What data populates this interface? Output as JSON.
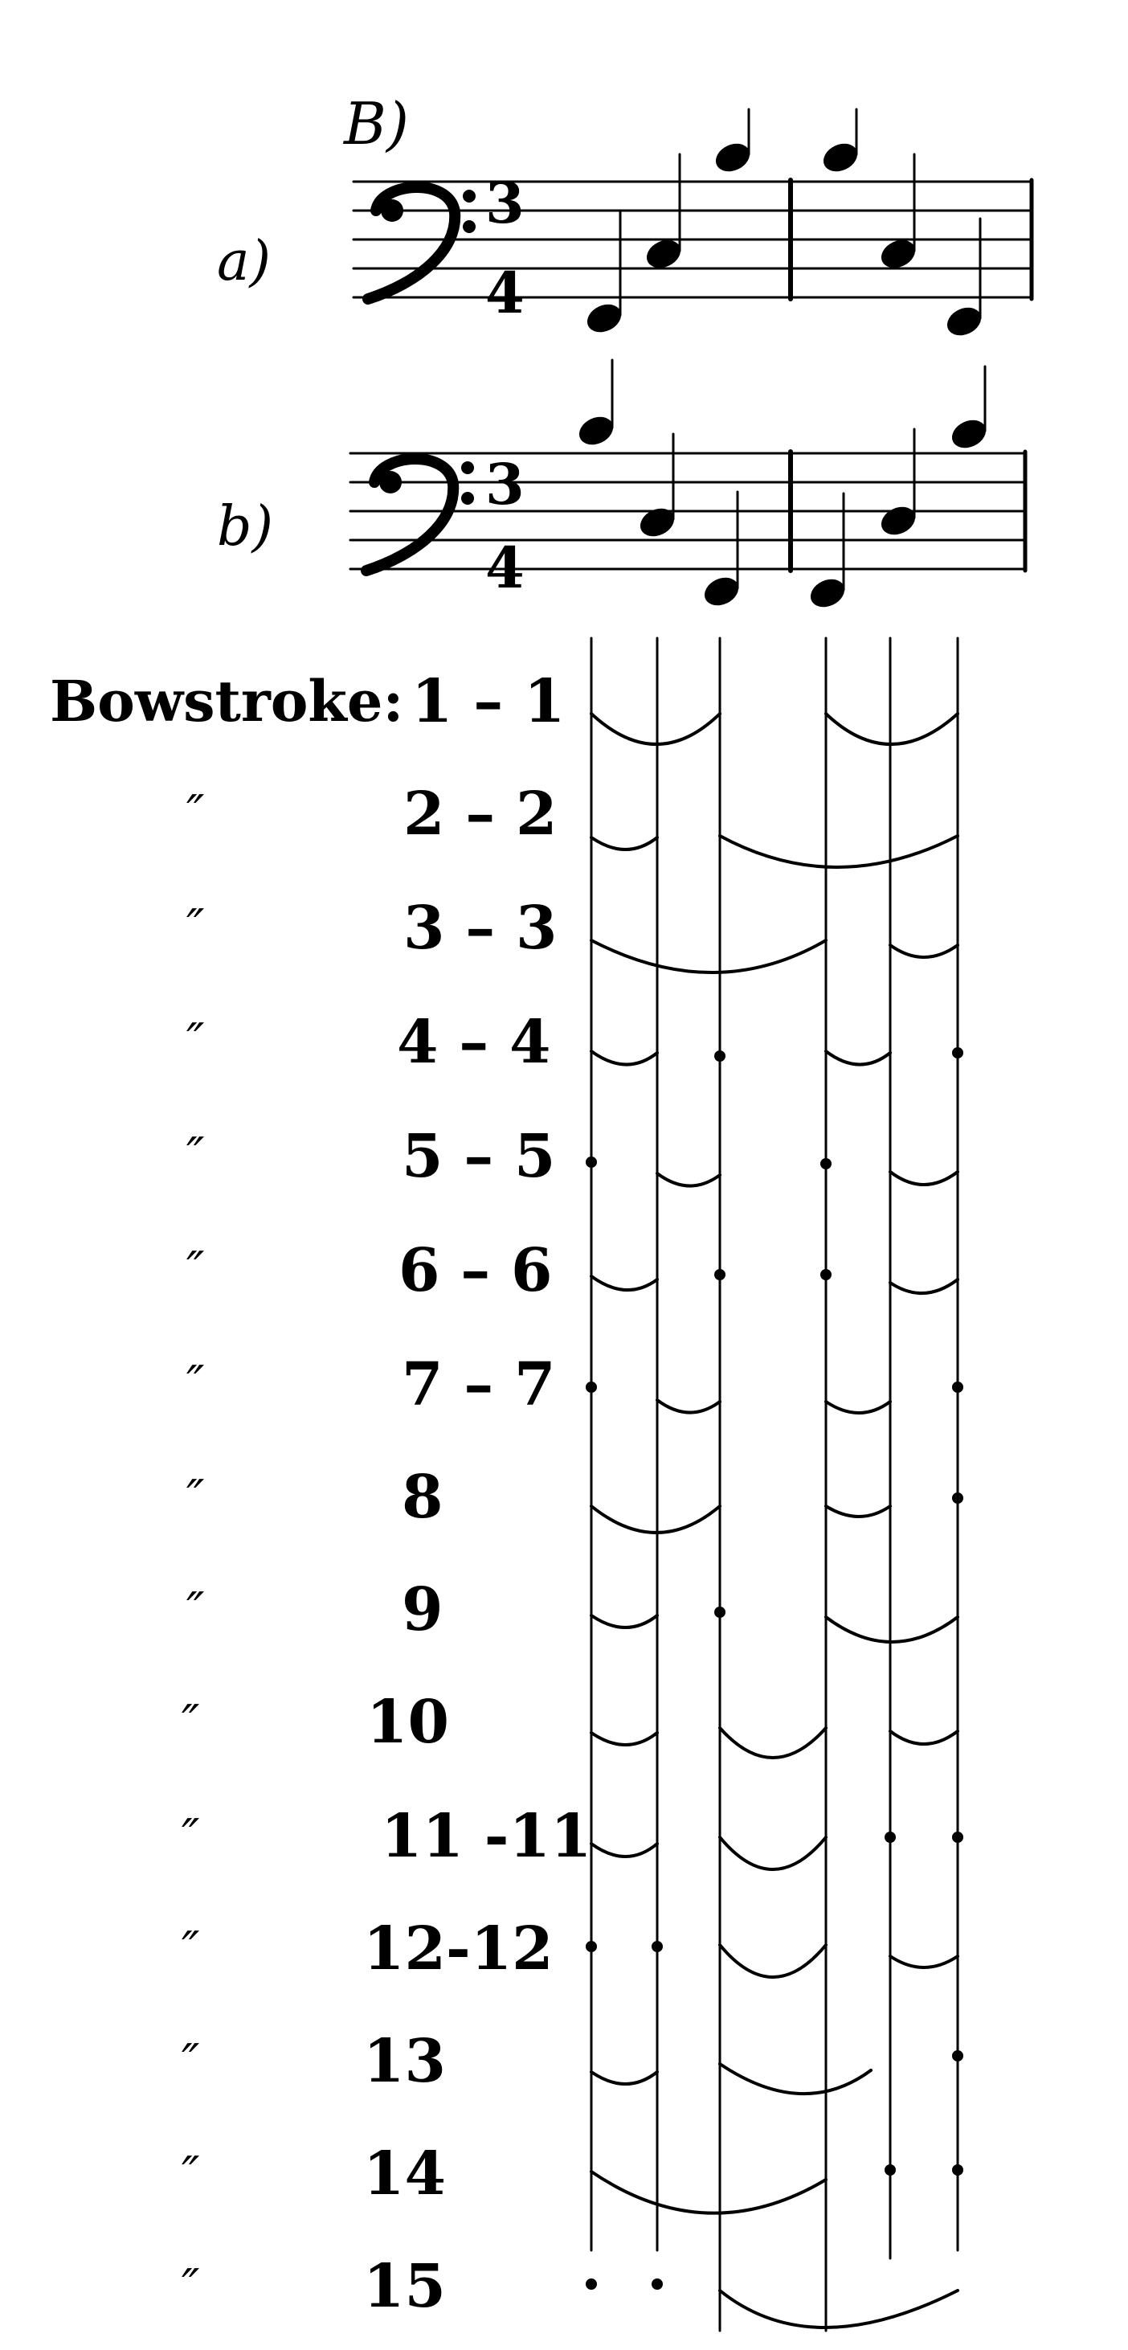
{
  "section_label": "B)",
  "staves": [
    {
      "variant": "a)",
      "time_signature": {
        "top": "3",
        "bottom": "4"
      },
      "clef": "bass-clef-icon"
    },
    {
      "variant": "b)",
      "time_signature": {
        "top": "3",
        "bottom": "4"
      },
      "clef": "bass-clef-icon"
    }
  ],
  "bowstroke_label": "Bowstroke:",
  "ditto_mark": "″",
  "rows": [
    {
      "num": "1 – 1"
    },
    {
      "num": "2 – 2"
    },
    {
      "num": "3 – 3"
    },
    {
      "num": "4 – 4"
    },
    {
      "num": "5 – 5"
    },
    {
      "num": "6 – 6"
    },
    {
      "num": "7 – 7"
    },
    {
      "num": "8"
    },
    {
      "num": "9"
    },
    {
      "num": "10"
    },
    {
      "num": "11 -11"
    },
    {
      "num": "12-12"
    },
    {
      "num": "13"
    },
    {
      "num": "14"
    },
    {
      "num": "15"
    }
  ]
}
